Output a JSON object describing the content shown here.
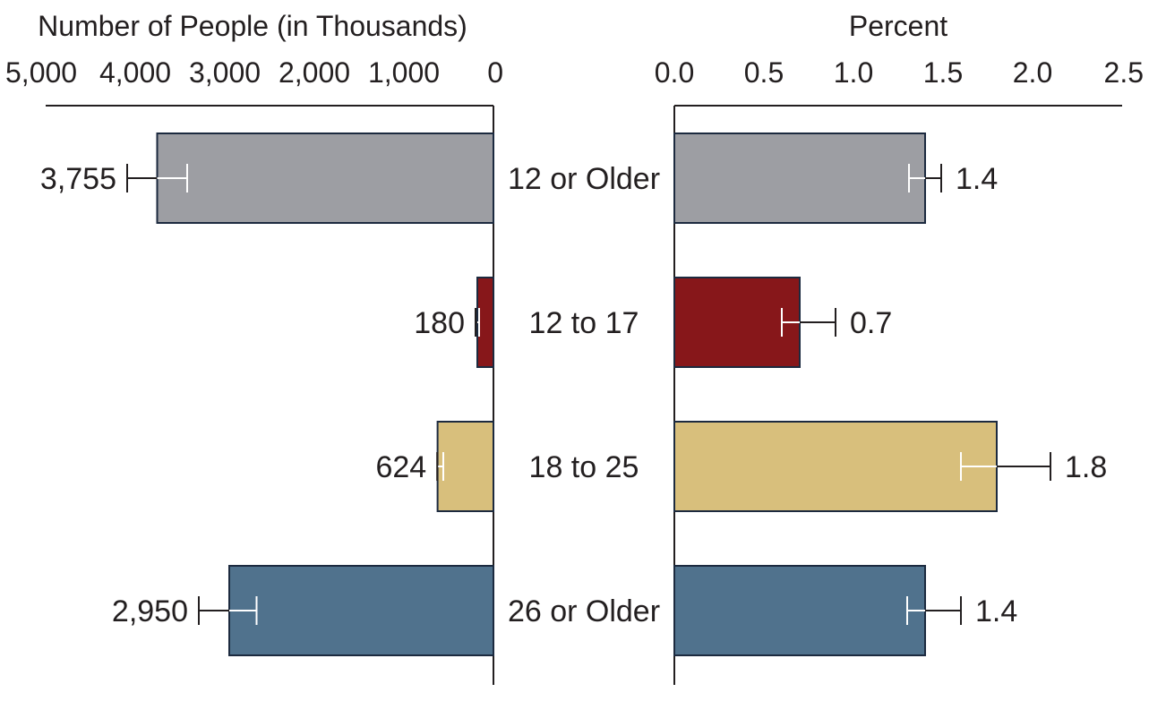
{
  "chart_data": {
    "type": "bar",
    "categories": [
      "12 or Older",
      "12 to 17",
      "18 to 25",
      "26 or Older"
    ],
    "colors": [
      "#9d9ea3",
      "#87171a",
      "#d8bf7c",
      "#50728d"
    ],
    "left": {
      "title": "Number of People (in Thousands)",
      "xlim": [
        0,
        5000
      ],
      "reversed": true,
      "ticks": [
        5000,
        4000,
        3000,
        2000,
        1000,
        0
      ],
      "tick_labels": [
        "5,000",
        "4,000",
        "3,000",
        "2,000",
        "1,000",
        "0"
      ],
      "values": [
        3755,
        180,
        624,
        2950
      ],
      "value_labels": [
        "3,755",
        "180",
        "624",
        "2,950"
      ],
      "error_low": [
        3420,
        160,
        560,
        2645
      ],
      "error_high": [
        4090,
        200,
        628,
        3290
      ]
    },
    "right": {
      "title": "Percent",
      "xlim": [
        0,
        2.5
      ],
      "ticks": [
        0,
        0.5,
        1,
        1.5,
        2,
        2.5
      ],
      "tick_labels": [
        "0.0",
        "0.5",
        "1.0",
        "1.5",
        "2.0",
        "2.5"
      ],
      "values": [
        1.4,
        0.7,
        1.8,
        1.4
      ],
      "value_labels": [
        "1.4",
        "0.7",
        "1.8",
        "1.4"
      ],
      "error_low": [
        1.31,
        0.6,
        1.6,
        1.3
      ],
      "error_high": [
        1.49,
        0.9,
        2.1,
        1.6
      ]
    }
  }
}
